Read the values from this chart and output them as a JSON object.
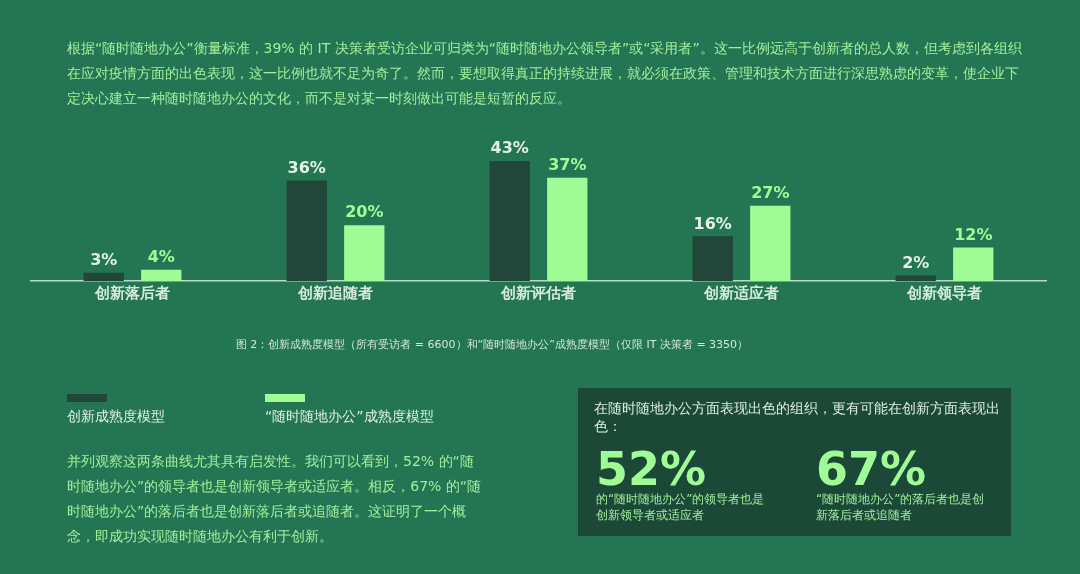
{
  "chart_data": [
    {
      "type": "bar",
      "categories": [
        "创新落后者",
        "创新追随者",
        "创新评估者",
        "创新适应者",
        "创新领导者"
      ],
      "series": [
        {
          "name": "创新成熟度模型",
          "color": "#22463a",
          "values": [
            3,
            36,
            43,
            16,
            2
          ],
          "value_labels": [
            "3%",
            "36%",
            "43%",
            "16%",
            "2%"
          ]
        },
        {
          "name": "“随时随地办公”成熟度模型",
          "color": "#a0fd96",
          "values": [
            4,
            20,
            37,
            27,
            12
          ],
          "value_labels": [
            "4%",
            "20%",
            "37%",
            "27%",
            "12%"
          ]
        }
      ],
      "legend": "bottom left",
      "annotations": [
        "根据“随时随地办公”衡量标准，39% 的 IT 决策者受访企业可归类为“随时随地办公领导者”或“采用者”。这一比例远高于创新者的总人数，但考虑到各组织在应对疫情方面的出色表现，这一比例也就不足为奇了。然而，要想取得真正的持续进展，就必须在政策、管理和技术方面进行深思熟虑的变革，使企业下定决心建立一种随时随地办公的文化，而不是对某一时刻做出可能是短暂的反应。",
        "图 2：创新成熟度模型（所有受访者 = 6600）和“随时随地办公”成熟度模型（仅限 IT 决策者 = 3350）",
        "并列观察这两条曲线尤其具有启发性。我们可以看到，52% 的“随时随地办公”的领导者也是创新领导者或适应者。相反，67% 的“随时随地办公”的落后者也是创新落后者或追随者。这证明了一个概念，即成功实现随时随地办公有利于创新。"
      ]
    },
    {
      "type": "other",
      "title": "在随时随地办公方面表现出色的组织，更有可能在创新方面表现出色：",
      "annotations": [
        "52%",
        "的“随时随地办公”的领导者也是创新领导者或适应者",
        "67%",
        "“随时随地办公”的落后者也是创新落后者或追随者"
      ]
    }
  ]
}
